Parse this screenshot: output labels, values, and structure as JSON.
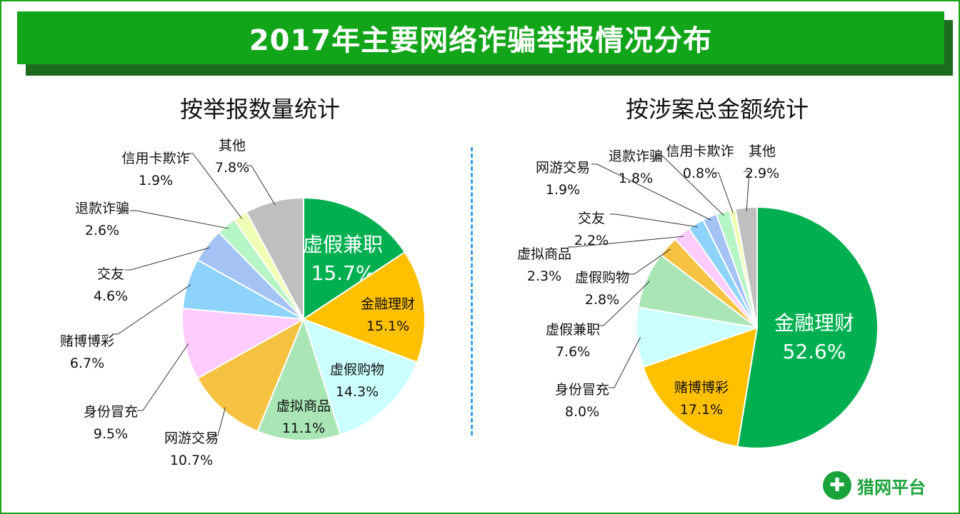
{
  "header": {
    "title": "2017年主要网络诈骗举报情况分布"
  },
  "logo": {
    "text": "猎网平台",
    "icon": "plus-shield-icon"
  },
  "chart_data": [
    {
      "type": "pie",
      "title": "按举报数量统计",
      "slices": [
        {
          "label": "虚假兼职",
          "value": 15.7,
          "display": "15.7%",
          "color": "#00b050"
        },
        {
          "label": "金融理财",
          "value": 15.1,
          "display": "15.1%",
          "color": "#ffc000"
        },
        {
          "label": "虚假购物",
          "value": 14.3,
          "display": "14.3%",
          "color": "#ccffff"
        },
        {
          "label": "虚拟商品",
          "value": 11.1,
          "display": "11.1%",
          "color": "#a9e5b5"
        },
        {
          "label": "网游交易",
          "value": 10.7,
          "display": "10.7%",
          "color": "#f5c242"
        },
        {
          "label": "身份冒充",
          "value": 9.5,
          "display": "9.5%",
          "color": "#ffccff"
        },
        {
          "label": "赌博博彩",
          "value": 6.7,
          "display": "6.7%",
          "color": "#8ed3fb"
        },
        {
          "label": "交友",
          "value": 4.6,
          "display": "4.6%",
          "color": "#a4c2f4"
        },
        {
          "label": "退款诈骗",
          "value": 2.6,
          "display": "2.6%",
          "color": "#b6f5c5"
        },
        {
          "label": "信用卡欺诈",
          "value": 1.9,
          "display": "1.9%",
          "color": "#efffb3"
        },
        {
          "label": "其他",
          "value": 7.8,
          "display": "7.8%",
          "color": "#bfbfbf"
        }
      ]
    },
    {
      "type": "pie",
      "title": "按涉案总金额统计",
      "slices": [
        {
          "label": "金融理财",
          "value": 52.6,
          "display": "52.6%",
          "color": "#00b050"
        },
        {
          "label": "赌博博彩",
          "value": 17.1,
          "display": "17.1%",
          "color": "#ffc000"
        },
        {
          "label": "身份冒充",
          "value": 8.0,
          "display": "8.0%",
          "color": "#ccffff"
        },
        {
          "label": "虚假兼职",
          "value": 7.6,
          "display": "7.6%",
          "color": "#a9e5b5"
        },
        {
          "label": "虚假购物",
          "value": 2.8,
          "display": "2.8%",
          "color": "#f5c242"
        },
        {
          "label": "虚拟商品",
          "value": 2.3,
          "display": "2.3%",
          "color": "#ffccff"
        },
        {
          "label": "交友",
          "value": 2.2,
          "display": "2.2%",
          "color": "#8ed3fb"
        },
        {
          "label": "网游交易",
          "value": 1.9,
          "display": "1.9%",
          "color": "#a4c2f4"
        },
        {
          "label": "退款诈骗",
          "value": 1.8,
          "display": "1.8%",
          "color": "#b6f5c5"
        },
        {
          "label": "信用卡欺诈",
          "value": 0.8,
          "display": "0.8%",
          "color": "#efffb3"
        },
        {
          "label": "其他",
          "value": 2.9,
          "display": "2.9%",
          "color": "#bfbfbf"
        }
      ]
    }
  ]
}
